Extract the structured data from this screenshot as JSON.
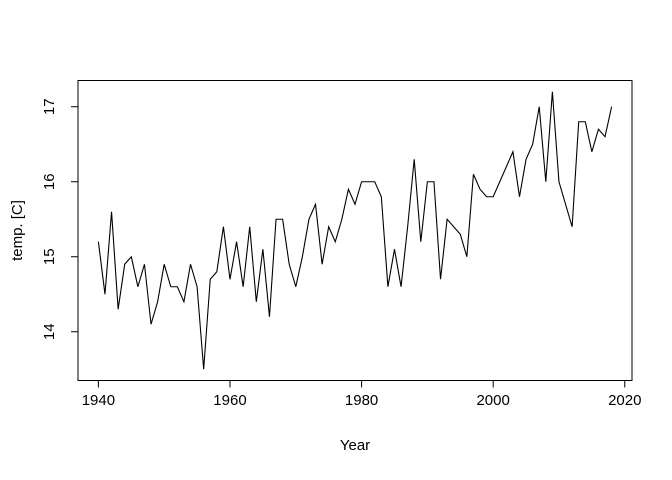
{
  "chart_data": {
    "type": "line",
    "title": "",
    "xlabel": "Year",
    "ylabel": "temp. [C]",
    "x": [
      1940,
      1941,
      1942,
      1943,
      1944,
      1945,
      1946,
      1947,
      1948,
      1949,
      1950,
      1951,
      1952,
      1953,
      1954,
      1955,
      1956,
      1957,
      1958,
      1959,
      1960,
      1961,
      1962,
      1963,
      1964,
      1965,
      1966,
      1967,
      1968,
      1969,
      1970,
      1971,
      1972,
      1973,
      1974,
      1975,
      1976,
      1977,
      1978,
      1979,
      1980,
      1981,
      1982,
      1983,
      1984,
      1985,
      1986,
      1987,
      1988,
      1989,
      1990,
      1991,
      1992,
      1993,
      1994,
      1995,
      1996,
      1997,
      1998,
      1999,
      2000,
      2001,
      2002,
      2003,
      2004,
      2005,
      2006,
      2007,
      2008,
      2009,
      2010,
      2011,
      2012,
      2013,
      2014,
      2015,
      2016,
      2017,
      2018
    ],
    "values": [
      15.2,
      14.5,
      15.6,
      14.3,
      14.9,
      15.0,
      14.6,
      14.9,
      14.1,
      14.4,
      14.9,
      14.6,
      14.6,
      14.4,
      14.9,
      14.6,
      13.5,
      14.7,
      14.8,
      15.4,
      14.7,
      15.2,
      14.6,
      15.4,
      14.4,
      15.1,
      14.2,
      15.5,
      15.5,
      14.9,
      14.6,
      15.0,
      15.5,
      15.7,
      14.9,
      15.4,
      15.2,
      15.5,
      15.9,
      15.7,
      16.0,
      16.0,
      16.0,
      15.8,
      14.6,
      15.1,
      14.6,
      15.4,
      16.3,
      15.2,
      16.0,
      16.0,
      14.7,
      15.5,
      15.4,
      15.3,
      15.0,
      16.1,
      15.9,
      15.8,
      15.8,
      16.0,
      16.2,
      16.4,
      15.8,
      16.3,
      16.5,
      17.0,
      16.0,
      17.2,
      16.0,
      15.7,
      15.4,
      16.8,
      16.8,
      16.4,
      16.7,
      16.6,
      17.0
    ],
    "xticks": [
      1940,
      1960,
      1980,
      2000,
      2020
    ],
    "yticks": [
      14,
      15,
      16,
      17
    ],
    "xlim": [
      1936.9,
      2021.1
    ],
    "ylim": [
      13.35,
      17.35
    ],
    "grid": false,
    "legend": "none",
    "line_color": "#000000",
    "axis_color": "#000000",
    "background": "#ffffff"
  }
}
